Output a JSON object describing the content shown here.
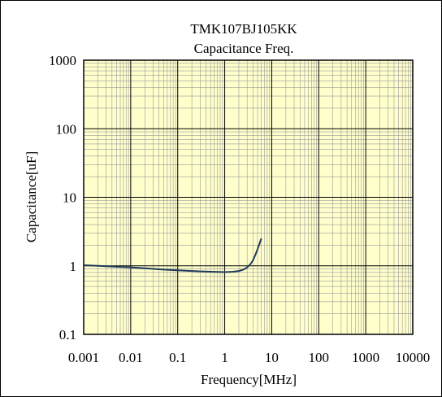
{
  "chart_data": {
    "type": "line",
    "title": "TMK107BJ105KK",
    "subtitle": "Capacitance Freq.",
    "xlabel": "Frequency[MHz]",
    "ylabel": "Capacitance[uF]",
    "x_scale": "log",
    "y_scale": "log",
    "xlim": [
      0.001,
      10000
    ],
    "ylim": [
      0.1,
      1000
    ],
    "x_ticks": [
      0.001,
      0.01,
      0.1,
      1,
      10,
      100,
      1000,
      10000
    ],
    "x_tick_labels": [
      "0.001",
      "0.01",
      "0.1",
      "1",
      "10",
      "100",
      "1000",
      "10000"
    ],
    "y_ticks": [
      0.1,
      1,
      10,
      100,
      1000
    ],
    "y_tick_labels": [
      "0.1",
      "1",
      "10",
      "100",
      "1000"
    ],
    "grid": true,
    "plot_background": "#ffffcc",
    "line_color": "#1f3a5a",
    "series": [
      {
        "x": [
          0.001,
          0.002,
          0.005,
          0.01,
          0.02,
          0.05,
          0.1,
          0.2,
          0.5,
          1,
          1.5,
          2,
          2.5,
          3,
          3.5,
          4,
          4.5,
          5,
          5.5,
          6
        ],
        "values": [
          1.02,
          1.0,
          0.97,
          0.95,
          0.92,
          0.88,
          0.86,
          0.84,
          0.82,
          0.81,
          0.82,
          0.84,
          0.88,
          0.95,
          1.05,
          1.2,
          1.45,
          1.75,
          2.1,
          2.5
        ]
      }
    ]
  }
}
